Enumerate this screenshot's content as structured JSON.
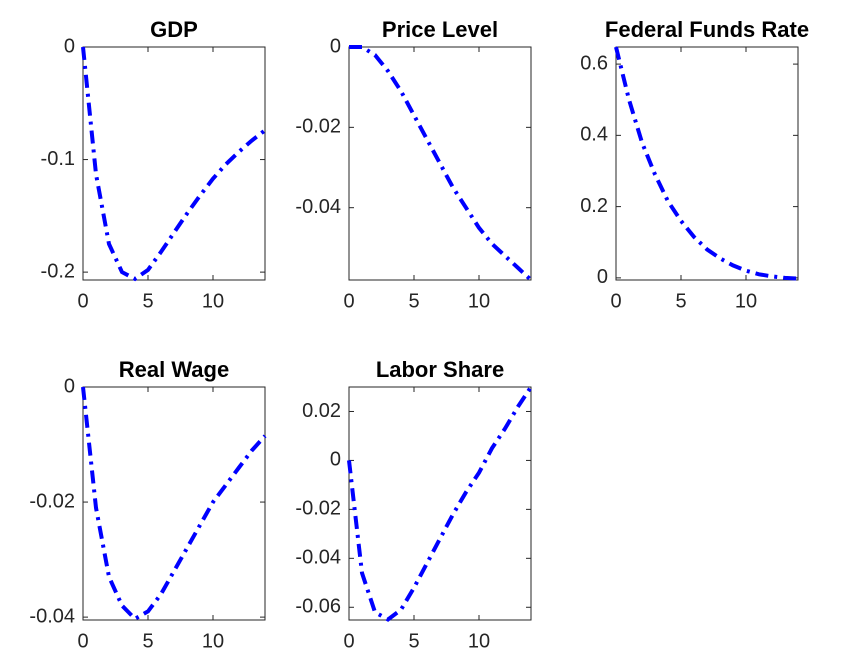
{
  "chart_data": [
    {
      "type": "line",
      "title": "GDP",
      "x": [
        0,
        1,
        2,
        3,
        4,
        5,
        6,
        7,
        8,
        9,
        10,
        11,
        12,
        13,
        14
      ],
      "values": [
        0,
        -0.113,
        -0.175,
        -0.2,
        -0.206,
        -0.198,
        -0.182,
        -0.165,
        -0.148,
        -0.132,
        -0.117,
        -0.104,
        -0.093,
        -0.083,
        -0.074
      ],
      "color": "#0000ff",
      "linestyle": "dash-dot",
      "xlim": [
        0,
        14
      ],
      "xticks": [
        0,
        5,
        10
      ],
      "ylim": [
        -0.207,
        0
      ],
      "yticks": [
        -0.2,
        -0.1,
        0
      ]
    },
    {
      "type": "line",
      "title": "Price Level",
      "x": [
        0,
        1,
        2,
        3,
        4,
        5,
        6,
        7,
        8,
        9,
        10,
        11,
        12,
        13,
        14
      ],
      "values": [
        0,
        0,
        -0.002,
        -0.006,
        -0.011,
        -0.017,
        -0.023,
        -0.029,
        -0.035,
        -0.04,
        -0.045,
        -0.049,
        -0.052,
        -0.055,
        -0.058
      ],
      "color": "#0000ff",
      "linestyle": "dash-dot",
      "xlim": [
        0,
        14
      ],
      "xticks": [
        0,
        5,
        10
      ],
      "ylim": [
        -0.058,
        0
      ],
      "yticks": [
        -0.04,
        -0.02,
        0
      ]
    },
    {
      "type": "line",
      "title": "Federal Funds Rate",
      "x": [
        0,
        1,
        2,
        3,
        4,
        5,
        6,
        7,
        8,
        9,
        10,
        11,
        12,
        13,
        14
      ],
      "values": [
        0.648,
        0.5,
        0.38,
        0.29,
        0.215,
        0.16,
        0.115,
        0.08,
        0.055,
        0.035,
        0.02,
        0.01,
        0.004,
        0,
        -0.002
      ],
      "color": "#0000ff",
      "linestyle": "dash-dot",
      "xlim": [
        0,
        14
      ],
      "xticks": [
        0,
        5,
        10
      ],
      "ylim": [
        -0.006,
        0.648
      ],
      "yticks": [
        0,
        0.2,
        0.4,
        0.6
      ]
    },
    {
      "type": "line",
      "title": "Real Wage",
      "x": [
        0,
        1,
        2,
        3,
        4,
        5,
        6,
        7,
        8,
        9,
        10,
        11,
        12,
        13,
        14
      ],
      "values": [
        0,
        -0.021,
        -0.033,
        -0.038,
        -0.0403,
        -0.039,
        -0.036,
        -0.032,
        -0.028,
        -0.024,
        -0.02,
        -0.017,
        -0.014,
        -0.011,
        -0.0085
      ],
      "color": "#0000ff",
      "linestyle": "dash-dot",
      "xlim": [
        0,
        14
      ],
      "xticks": [
        0,
        5,
        10
      ],
      "ylim": [
        -0.0405,
        0
      ],
      "yticks": [
        -0.04,
        -0.02,
        0
      ]
    },
    {
      "type": "line",
      "title": "Labor Share",
      "x": [
        0,
        1,
        2,
        3,
        4,
        5,
        6,
        7,
        8,
        9,
        10,
        11,
        12,
        13,
        14
      ],
      "values": [
        0,
        -0.046,
        -0.062,
        -0.065,
        -0.061,
        -0.052,
        -0.042,
        -0.032,
        -0.022,
        -0.013,
        -0.005,
        0.005,
        0.013,
        0.022,
        0.03
      ],
      "color": "#0000ff",
      "linestyle": "dash-dot",
      "xlim": [
        0,
        14
      ],
      "xticks": [
        0,
        5,
        10
      ],
      "ylim": [
        -0.0652,
        0.03
      ],
      "yticks": [
        -0.06,
        -0.04,
        -0.02,
        0,
        0.02
      ]
    }
  ]
}
